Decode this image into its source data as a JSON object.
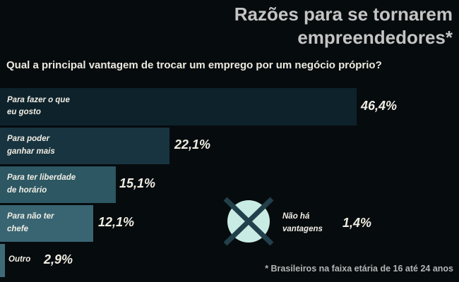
{
  "header": {
    "title": "Razões para se tornarem empreendedores*"
  },
  "question": "Qual a principal vantagem de trocar um emprego por um negócio próprio?",
  "chart_data": {
    "type": "bar",
    "orientation": "horizontal",
    "title": "Razões para se tornarem empreendedores*",
    "subtitle": "Qual a principal vantagem de trocar um emprego por um negócio próprio?",
    "categories": [
      "Para fazer o que eu gosto",
      "Para poder ganhar mais",
      "Para ter liberdade de horário",
      "Para não ter chefe",
      "Outro",
      "Não há vantagens"
    ],
    "values": [
      46.4,
      22.1,
      15.1,
      12.1,
      2.9,
      1.4
    ],
    "value_labels": [
      "46,4%",
      "22,1%",
      "15,1%",
      "12,1%",
      "2,9%",
      "1,4%"
    ],
    "xlabel": "",
    "ylabel": "",
    "xlim": [
      0,
      50
    ],
    "grid": false,
    "legend": false,
    "annotation": "* Brasileiros na faixa etária de 16 até 24 anos"
  },
  "bars": [
    {
      "label_line1": "Para fazer o que",
      "label_line2": "eu gosto",
      "value": "46,4%"
    },
    {
      "label_line1": "Para poder",
      "label_line2": "ganhar mais",
      "value": "22,1%"
    },
    {
      "label_line1": "Para ter liberdade",
      "label_line2": "de horário",
      "value": "15,1%"
    },
    {
      "label_line1": "Para não ter",
      "label_line2": "chefe",
      "value": "12,1%"
    },
    {
      "label_line1": "Outro",
      "label_line2": "",
      "value": "2,9%"
    }
  ],
  "no_advantage": {
    "icon": "crossed-circle-icon",
    "label_line1": "Não há",
    "label_line2": "vantagens",
    "value": "1,4%"
  },
  "footnote": "* Brasileiros na faixa etária de 16 até 24 anos",
  "colors": {
    "background": "#060b0e",
    "title_text": "#c4c4c4",
    "question_text": "#edeadf",
    "bar_colors": [
      "#0e222b",
      "#183440",
      "#2c5763",
      "#396573",
      "#3f6b78"
    ],
    "value_text": "#efece2",
    "circle_fill": "#c8ece4",
    "cross_stroke": "#22404b",
    "footnote_text": "#b5b5b5"
  }
}
